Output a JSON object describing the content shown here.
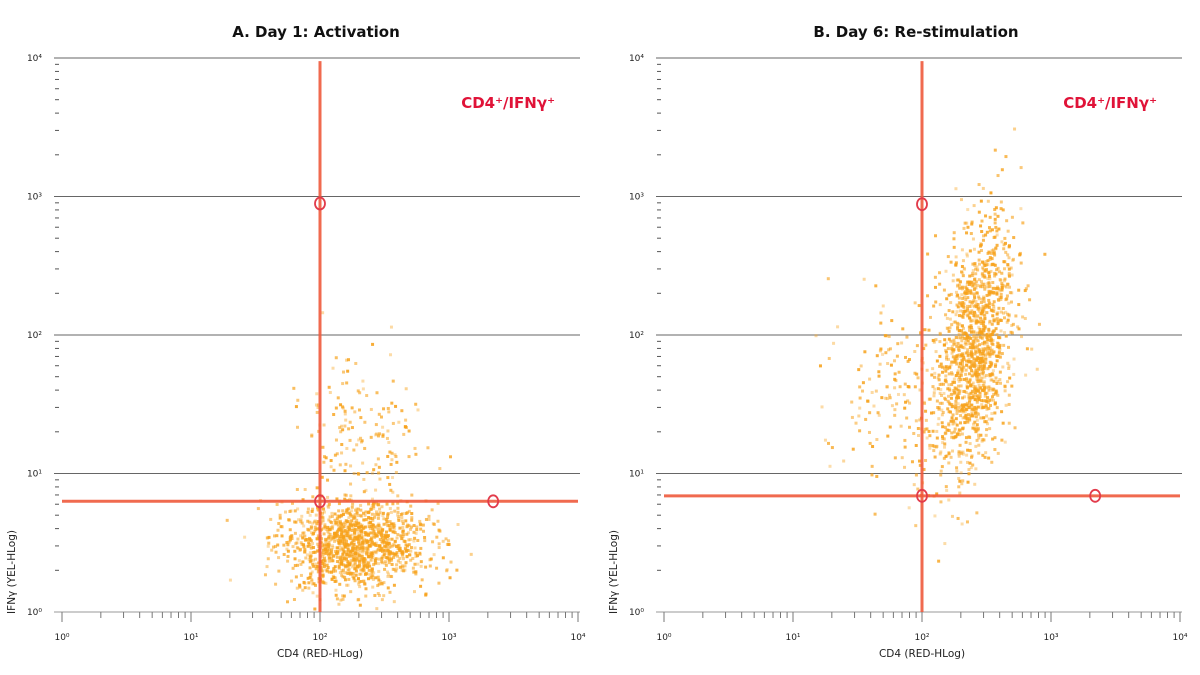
{
  "chart_data": [
    {
      "type": "scatter",
      "title": "A. Day 1: Activation",
      "xlabel": "CD4 (RED-HLog)",
      "ylabel": "IFNγ (YEL-HLog)",
      "xscale": "log",
      "yscale": "log",
      "xlim": [
        1,
        10000
      ],
      "ylim": [
        1,
        10000
      ],
      "xticks": [
        "10⁰",
        "10¹",
        "10²",
        "10³",
        "10⁴"
      ],
      "yticks": [
        "10⁰",
        "10¹",
        "10²",
        "10³",
        "10⁴"
      ],
      "grid": "horizontal at decades",
      "annotation": "CD4⁺/IFNγ⁺",
      "gate": {
        "x": 100,
        "y": 6.3,
        "markers": [
          [
            100,
            890
          ],
          [
            100,
            6.3
          ],
          [
            2200,
            6.3
          ]
        ]
      },
      "populations": [
        {
          "center": [
            180,
            3
          ],
          "spread_decades": [
            0.28,
            0.16
          ],
          "count": 1300
        },
        {
          "center": [
            200,
            18
          ],
          "spread_decades": [
            0.25,
            0.32
          ],
          "count": 170
        }
      ],
      "colors": {
        "points": "#f7a21b",
        "gate": "#ee5a3c",
        "annotation": "#e01338"
      }
    },
    {
      "type": "scatter",
      "title": "B. Day 6: Re-stimulation",
      "xlabel": "CD4 (RED-HLog)",
      "ylabel": "IFNγ (YEL-HLog)",
      "xscale": "log",
      "yscale": "log",
      "xlim": [
        1,
        10000
      ],
      "ylim": [
        1,
        10000
      ],
      "xticks": [
        "10⁰",
        "10¹",
        "10²",
        "10³",
        "10⁴"
      ],
      "yticks": [
        "10⁰",
        "10¹",
        "10²",
        "10³",
        "10⁴"
      ],
      "grid": "horizontal at decades",
      "annotation": "CD4⁺/IFNγ⁺",
      "gate": {
        "x": 100,
        "y": 6.9,
        "markers": [
          [
            100,
            880
          ],
          [
            100,
            6.9
          ],
          [
            2200,
            6.9
          ]
        ]
      },
      "populations": [
        {
          "center": [
            260,
            80
          ],
          "spread_decades": [
            0.15,
            0.42
          ],
          "count": 1300
        },
        {
          "center": [
            80,
            40
          ],
          "spread_decades": [
            0.3,
            0.35
          ],
          "count": 220
        }
      ],
      "colors": {
        "points": "#f7a21b",
        "gate": "#ee5a3c",
        "annotation": "#e01338"
      }
    }
  ]
}
